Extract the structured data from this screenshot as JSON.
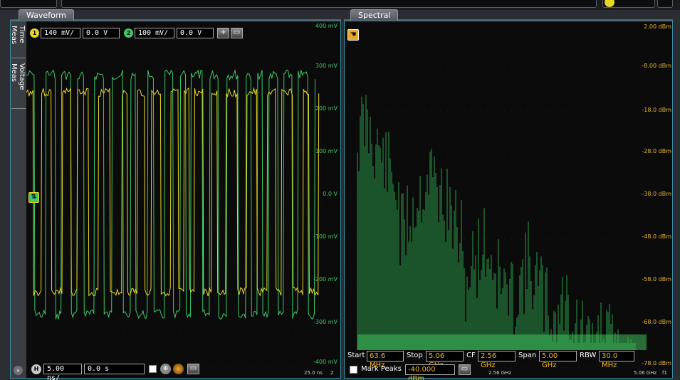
{
  "tabs": {
    "waveform": "Waveform",
    "spectral": "Spectral"
  },
  "side_tabs": [
    "Time Meas",
    "Voltage Meas"
  ],
  "channels": [
    {
      "num": "1",
      "color": "#e9d728",
      "scale": "140 mV/",
      "offset": "0.0 V"
    },
    {
      "num": "2",
      "color": "#3fc76a",
      "scale": "100 mV/",
      "offset": "0.0 V"
    }
  ],
  "waveform_y_labels": [
    "400 mV",
    "300 mV",
    "200 mV",
    "100 mV",
    "0.0 V",
    "-100 mV",
    "-200 mV",
    "-300 mV",
    "-400 mV"
  ],
  "timebase": {
    "badge": "H",
    "scale": "5.00 ns/",
    "position": "0.0 s",
    "end_time": "25.0 ns",
    "end_index": "2"
  },
  "spectral_y_labels": [
    "2.00 dBm",
    "-8.00 dBm",
    "-18.0 dBm",
    "-28.0 dBm",
    "-38.0 dBm",
    "-48.0 dBm",
    "-58.0 dBm",
    "-68.0 dBm",
    "-78.0 dBm"
  ],
  "spectral_meas": {
    "start_label": "Start",
    "start": "63.6 MHz",
    "stop_label": "Stop",
    "stop": "5.06 GHz",
    "cf_label": "CF",
    "cf": "2.56 GHz",
    "span_label": "Span",
    "span": "5.00 GHz",
    "rbw_label": "RBW",
    "rbw": "30.0 MHz"
  },
  "mark_peaks": {
    "label": "Mark Peaks",
    "threshold": "-40.000 dBm"
  },
  "spectral_x_labels": {
    "center": "2.56 GHz",
    "end": "5.06 GHz",
    "func": "f1"
  },
  "colors": {
    "ch1": "#e9d728",
    "ch2": "#3fc76a",
    "accent": "#3a8fa8",
    "scale_text": "#e4b32f"
  },
  "icons": {
    "trigger": "trigger-marker-icon",
    "spectral_marker": "spectral-marker-icon"
  }
}
